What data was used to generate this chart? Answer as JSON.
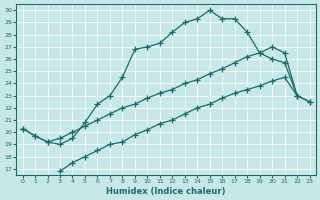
{
  "xlabel": "Humidex (Indice chaleur)",
  "background_color": "#c8e8e8",
  "line_color": "#1a6b6b",
  "xlim": [
    -0.5,
    23.5
  ],
  "ylim": [
    16.5,
    30.5
  ],
  "xticks": [
    0,
    1,
    2,
    3,
    4,
    5,
    6,
    7,
    8,
    9,
    10,
    11,
    12,
    13,
    14,
    15,
    16,
    17,
    18,
    19,
    20,
    21,
    22,
    23
  ],
  "yticks": [
    17,
    18,
    19,
    20,
    21,
    22,
    23,
    24,
    25,
    26,
    27,
    28,
    29,
    30
  ],
  "line1_x": [
    0,
    1,
    2,
    3,
    4,
    5,
    6,
    7,
    8,
    9,
    10,
    11,
    12,
    13,
    14,
    15,
    16,
    17,
    18,
    19,
    20,
    21,
    22
  ],
  "line1_y": [
    20.3,
    19.7,
    19.2,
    19.0,
    19.5,
    20.8,
    22.3,
    23.0,
    24.5,
    26.8,
    27.0,
    27.3,
    28.2,
    29.0,
    29.3,
    30.0,
    29.3,
    29.3,
    28.2,
    26.5,
    26.0,
    25.7,
    23.0
  ],
  "line2_x": [
    0,
    1,
    2,
    3,
    4,
    5,
    6,
    7,
    8,
    9,
    10,
    11,
    12,
    13,
    14,
    15,
    16,
    17,
    18,
    19,
    20,
    21,
    22,
    23
  ],
  "line2_y": [
    20.3,
    19.7,
    19.2,
    19.5,
    20.0,
    20.5,
    21.0,
    21.5,
    22.0,
    22.3,
    22.8,
    23.2,
    23.5,
    24.0,
    24.3,
    24.8,
    25.2,
    25.7,
    26.2,
    26.5,
    27.0,
    26.5,
    23.0,
    22.5
  ],
  "line3_x": [
    3,
    4,
    5,
    6,
    7,
    8,
    9,
    10,
    11,
    12,
    13,
    14,
    15,
    16,
    17,
    18,
    19,
    20,
    21,
    22,
    23
  ],
  "line3_y": [
    16.8,
    17.5,
    18.0,
    18.5,
    19.0,
    19.2,
    19.8,
    20.2,
    20.7,
    21.0,
    21.5,
    22.0,
    22.3,
    22.8,
    23.2,
    23.5,
    23.8,
    24.2,
    24.5,
    23.0,
    22.5
  ]
}
